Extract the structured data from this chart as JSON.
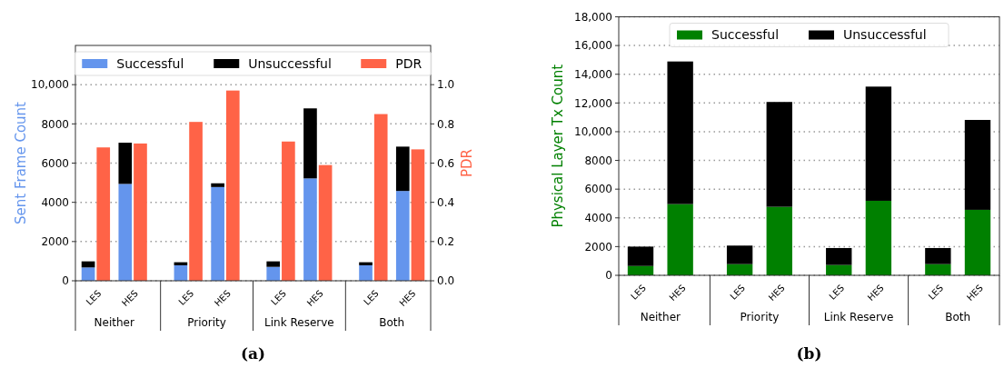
{
  "chart_data": [
    {
      "type": "bar",
      "stacked": true,
      "ylabel": "Sent Frame Count",
      "y2label": "PDR",
      "categories": [
        "LES",
        "HES",
        "LES",
        "HES",
        "LES",
        "HES",
        "LES",
        "HES"
      ],
      "series": [
        {
          "name": "Successful",
          "color": "#6495ed",
          "values": [
            680,
            4940,
            790,
            4780,
            710,
            5220,
            790,
            4580
          ]
        },
        {
          "name": "Unsuccessful",
          "color": "#000000",
          "values": [
            310,
            2100,
            155,
            190,
            280,
            3570,
            155,
            2260
          ]
        },
        {
          "name": "PDR",
          "color": "#ff6347",
          "axis": "y2",
          "values": [
            0.68,
            0.7,
            0.81,
            0.97,
            0.71,
            0.59,
            0.85,
            0.67
          ]
        }
      ],
      "ylim": [
        0,
        12000
      ],
      "yticks": [
        0,
        2000,
        4000,
        6000,
        8000,
        {
          "value": 10000,
          "label": "10,000"
        }
      ],
      "y2lim": [
        0,
        1.2
      ],
      "y2ticks": [
        {
          "value": 0,
          "label": "0.0"
        },
        0.2,
        0.4,
        0.6,
        0.8,
        {
          "value": 1,
          "label": "1.0"
        }
      ],
      "grid": "y",
      "legend": "top",
      "annotations": [
        "Neither",
        "Priority",
        "Link Reserve",
        "Both",
        "(a)"
      ]
    },
    {
      "type": "bar",
      "stacked": true,
      "ylabel": "Physical Layer Tx Count",
      "categories": [
        "LES",
        "HES",
        "LES",
        "HES",
        "LES",
        "HES",
        "LES",
        "HES"
      ],
      "series": [
        {
          "name": "Successful",
          "color": "#008000",
          "values": [
            650,
            4960,
            780,
            4770,
            720,
            5190,
            780,
            4560
          ]
        },
        {
          "name": "Unsuccessful",
          "color": "#000000",
          "values": [
            1350,
            9930,
            1290,
            7300,
            1180,
            7950,
            1120,
            6260
          ]
        }
      ],
      "ylim": [
        0,
        18000
      ],
      "yticks": [
        0,
        2000,
        4000,
        6000,
        8000,
        {
          "value": 10000,
          "label": "10,000"
        },
        {
          "value": 12000,
          "label": "12,000"
        },
        {
          "value": 14000,
          "label": "14,000"
        },
        {
          "value": 16000,
          "label": "16,000"
        },
        {
          "value": 18000,
          "label": "18,000"
        }
      ],
      "grid": "y",
      "legend": "top",
      "annotations": [
        "Neither",
        "Priority",
        "Link Reserve",
        "Both",
        "(b)"
      ]
    }
  ]
}
